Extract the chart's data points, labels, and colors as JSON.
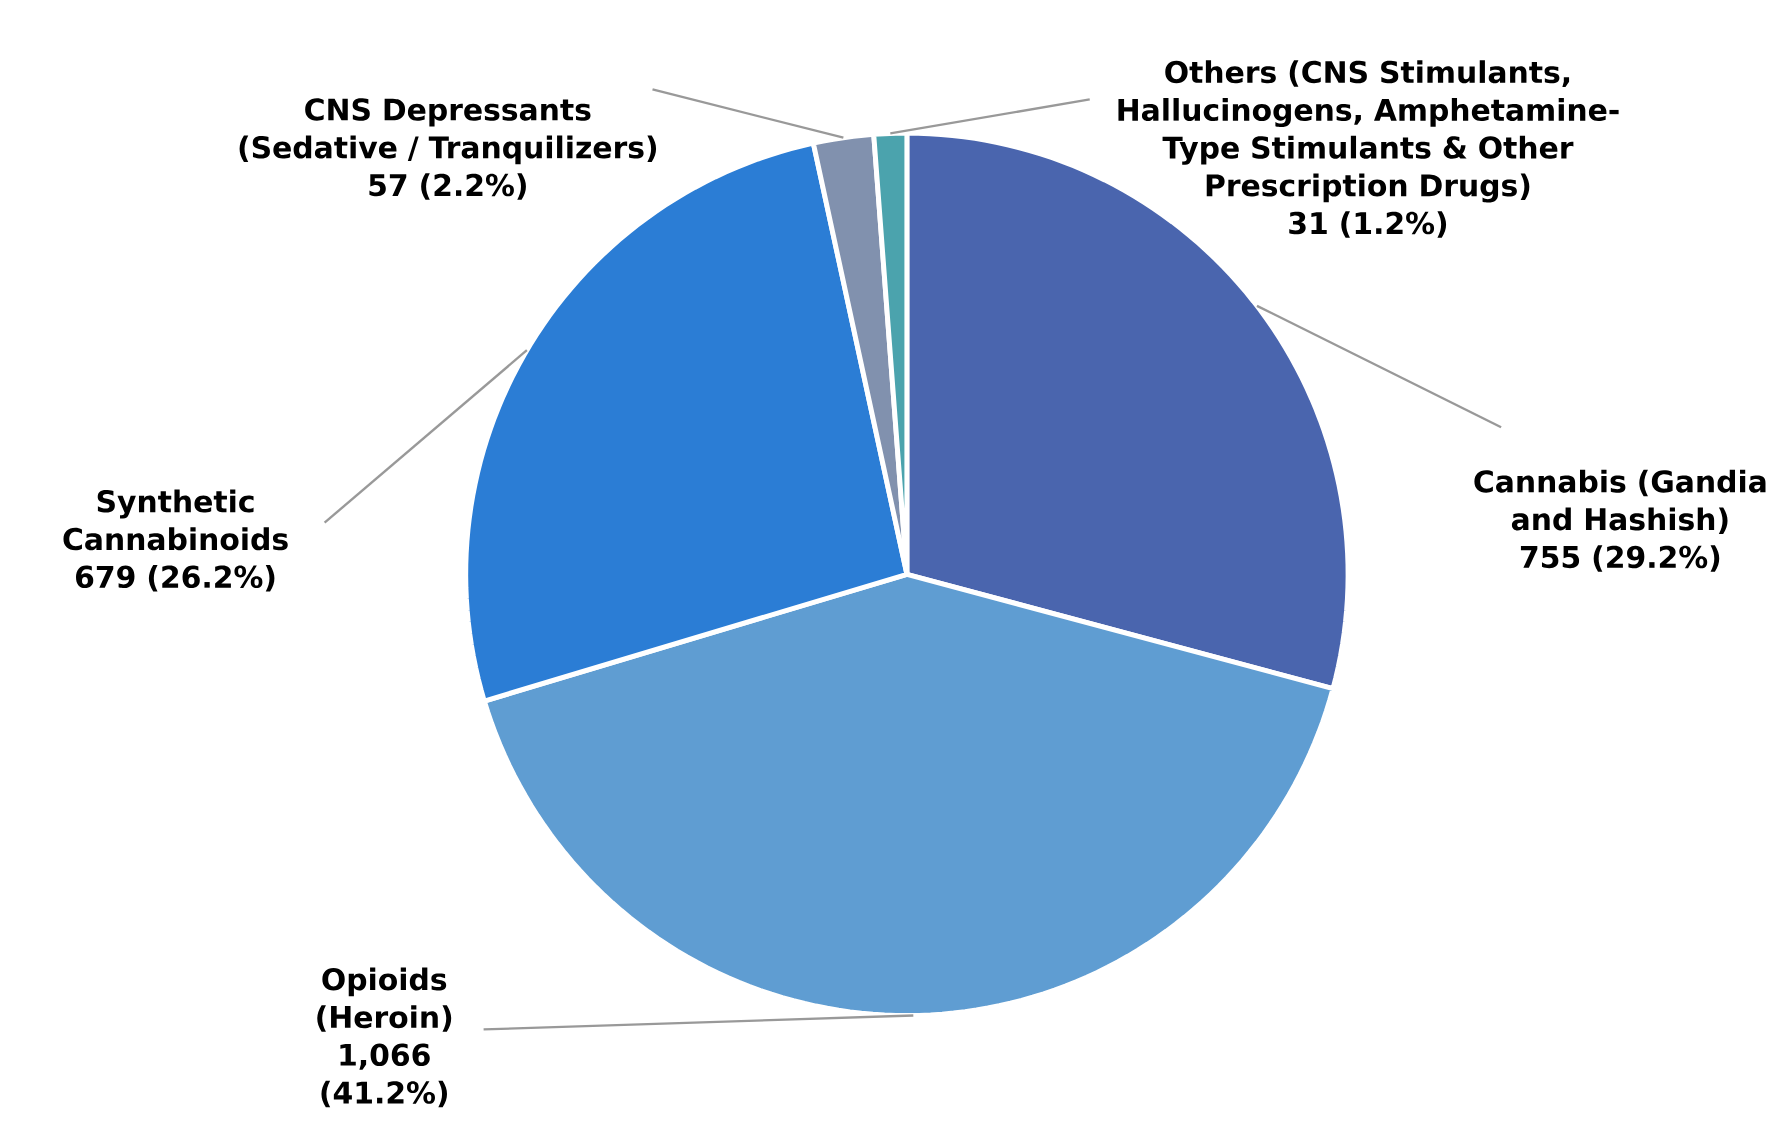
{
  "chart_data": {
    "type": "pie",
    "categories": [
      "Cannabis (Gandia and Hashish)",
      "Opioids (Heroin)",
      "Synthetic Cannabinoids",
      "CNS Depressants (Sedative / Tranquilizers)",
      "Others (CNS Stimulants, Hallucinogens, Amphetamine-Type Stimulants & Other Prescription Drugs)"
    ],
    "values": [
      755,
      1066,
      679,
      57,
      31
    ],
    "value_labels": [
      "755 (29.2%)",
      "1,066 (41.2%)",
      "679 (26.2%)",
      "57 (2.2%)",
      "31 (1.2%)"
    ],
    "colors": [
      "#4a65ae",
      "#5f9dd2",
      "#2b7dd5",
      "#8191ae",
      "#4ba3ad"
    ]
  }
}
